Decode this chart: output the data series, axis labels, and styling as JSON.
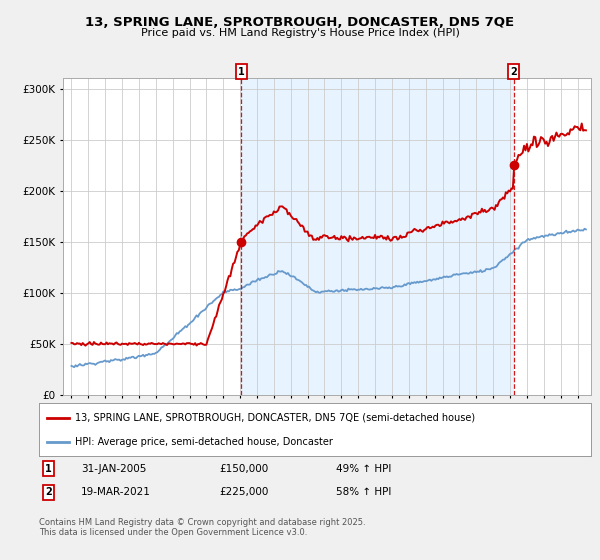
{
  "title_line1": "13, SPRING LANE, SPROTBROUGH, DONCASTER, DN5 7QE",
  "title_line2": "Price paid vs. HM Land Registry's House Price Index (HPI)",
  "legend_label_red": "13, SPRING LANE, SPROTBROUGH, DONCASTER, DN5 7QE (semi-detached house)",
  "legend_label_blue": "HPI: Average price, semi-detached house, Doncaster",
  "marker1_date": "31-JAN-2005",
  "marker1_price": "£150,000",
  "marker1_hpi": "49% ↑ HPI",
  "marker2_date": "19-MAR-2021",
  "marker2_price": "£225,000",
  "marker2_hpi": "58% ↑ HPI",
  "copyright": "Contains HM Land Registry data © Crown copyright and database right 2025.\nThis data is licensed under the Open Government Licence v3.0.",
  "background_color": "#f0f0f0",
  "plot_bg_color": "#ffffff",
  "red_color": "#cc0000",
  "blue_color": "#6699cc",
  "shade_color": "#ddeeff",
  "marker1_x_year": 2005.08,
  "marker1_y": 150000,
  "marker2_x_year": 2021.21,
  "marker2_y": 225000,
  "ylim": [
    0,
    310000
  ],
  "xlim_start": 1994.5,
  "xlim_end": 2025.8
}
